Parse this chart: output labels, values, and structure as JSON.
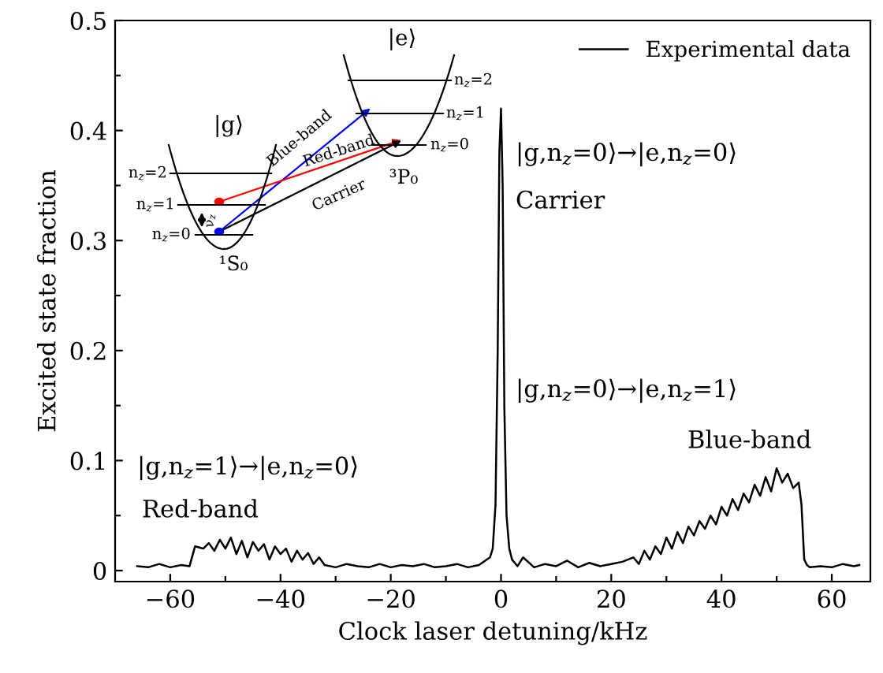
{
  "chart_data": {
    "type": "line",
    "xlabel": "Clock laser detuning/kHz",
    "ylabel": "Excited state fraction",
    "xlim": [
      -70,
      67
    ],
    "ylim": [
      -0.01,
      0.5
    ],
    "xticks": [
      {
        "value": -60,
        "label": "−60"
      },
      {
        "value": -50,
        "label": null
      },
      {
        "value": -40,
        "label": "−40"
      },
      {
        "value": -30,
        "label": null
      },
      {
        "value": -20,
        "label": "−20"
      },
      {
        "value": -10,
        "label": null
      },
      0,
      {
        "value": 10,
        "label": null
      },
      20,
      {
        "value": 30,
        "label": null
      },
      40,
      {
        "value": 50,
        "label": null
      },
      60
    ],
    "yticks": [
      0,
      {
        "value": 0.05,
        "label": null
      },
      0.1,
      {
        "value": 0.15,
        "label": null
      },
      0.2,
      {
        "value": 0.25,
        "label": null
      },
      0.3,
      {
        "value": 0.35,
        "label": null
      },
      0.4,
      {
        "value": 0.45,
        "label": null
      },
      0.5
    ],
    "grid": false,
    "legend": "top right",
    "marker": "none",
    "line_style": "solid",
    "x": [
      -66,
      -64,
      -62,
      -60,
      -58,
      -56.5,
      -55.5,
      -54,
      -53,
      -52,
      -51,
      -50,
      -49,
      -48,
      -47,
      -46,
      -45,
      -44,
      -43,
      -42,
      -41,
      -40,
      -39,
      -38,
      -37,
      -36,
      -35,
      -34,
      -33,
      -32,
      -30,
      -28,
      -26,
      -24,
      -22,
      -20,
      -18,
      -16,
      -14,
      -12,
      -10,
      -8,
      -6,
      -4,
      -2,
      -1.5,
      -1,
      -0.6,
      -0.3,
      0,
      0.3,
      0.6,
      1,
      1.5,
      2,
      3,
      4,
      6,
      8,
      10,
      12,
      14,
      16,
      18,
      20,
      22,
      24,
      25,
      26,
      27,
      28,
      29,
      30,
      31,
      32,
      33,
      34,
      35,
      36,
      37,
      38,
      39,
      40,
      41,
      42,
      43,
      44,
      45,
      46,
      47,
      48,
      49,
      50,
      51,
      52,
      53,
      54,
      54.5,
      55,
      55.5,
      56,
      58,
      60,
      62,
      64,
      65
    ],
    "series": [
      {
        "name": "Experimental data",
        "color": "#000000",
        "values": [
          0.004,
          0.003,
          0.006,
          0.003,
          0.005,
          0.004,
          0.022,
          0.02,
          0.025,
          0.018,
          0.028,
          0.02,
          0.03,
          0.015,
          0.027,
          0.012,
          0.026,
          0.018,
          0.024,
          0.01,
          0.022,
          0.015,
          0.02,
          0.008,
          0.018,
          0.01,
          0.016,
          0.006,
          0.012,
          0.005,
          0.003,
          0.006,
          0.004,
          0.003,
          0.006,
          0.003,
          0.005,
          0.004,
          0.006,
          0.003,
          0.004,
          0.006,
          0.003,
          0.005,
          0.012,
          0.02,
          0.06,
          0.2,
          0.38,
          0.42,
          0.35,
          0.15,
          0.05,
          0.02,
          0.01,
          0.004,
          0.012,
          0.003,
          0.006,
          0.004,
          0.009,
          0.003,
          0.007,
          0.004,
          0.006,
          0.008,
          0.012,
          0.006,
          0.018,
          0.01,
          0.022,
          0.015,
          0.03,
          0.02,
          0.035,
          0.025,
          0.04,
          0.032,
          0.045,
          0.038,
          0.05,
          0.042,
          0.058,
          0.05,
          0.065,
          0.055,
          0.07,
          0.062,
          0.078,
          0.068,
          0.085,
          0.072,
          0.093,
          0.08,
          0.088,
          0.075,
          0.08,
          0.06,
          0.01,
          0.005,
          0.003,
          0.004,
          0.003,
          0.006,
          0.004,
          0.005
        ]
      }
    ],
    "annotations": [
      "|g,n$_{z}$=0⟩→|e,n$_{z}$=0⟩",
      "Carrier",
      "|g,n$_{z}$=0⟩→|e,n$_{z}$=1⟩",
      "Blue-band",
      "|g,n$_{z}$=1⟩→|e,n$_{z}$=0⟩",
      "Red-band",
      "|g⟩",
      "|e⟩",
      "n$_{z}$=2",
      "n$_{z}$=1",
      "n$_{z}$=0",
      "n$_{z}$=2",
      "n$_{z}$=1",
      "n$_{z}$=0",
      "¹S₀",
      "³P₀",
      "Blue-band",
      "Red-band",
      "Carrier",
      "ν$_{z}$"
    ]
  }
}
